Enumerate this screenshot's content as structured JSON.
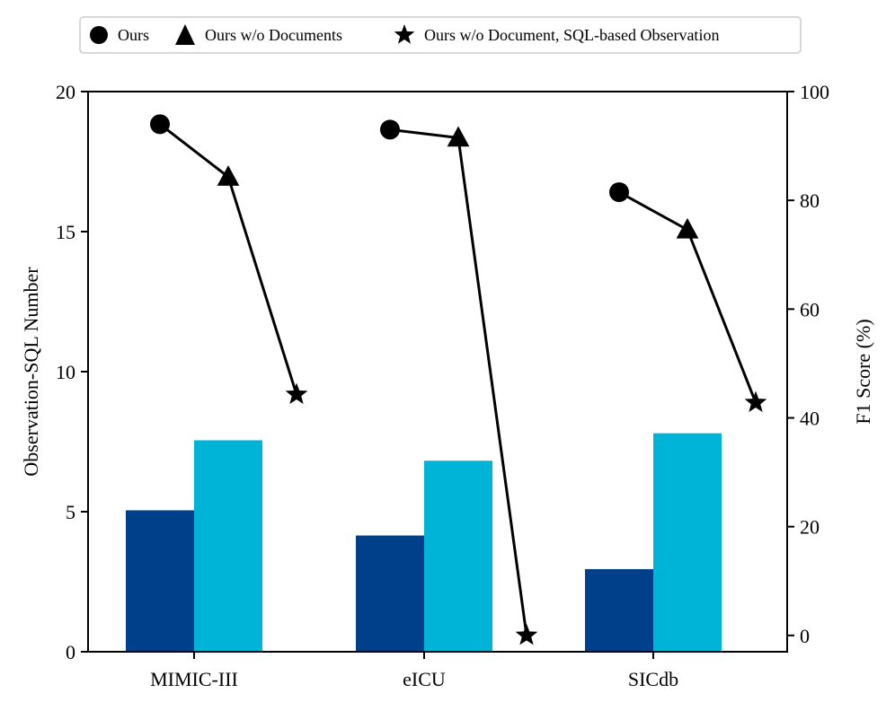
{
  "chart_data": {
    "type": "bar",
    "categories": [
      "MIMIC-III",
      "eICU",
      "SICdb"
    ],
    "left_axis": {
      "label": "Observation-SQL Number",
      "ylim": [
        0,
        20
      ],
      "ticks": [
        0,
        5,
        10,
        15,
        20
      ]
    },
    "right_axis": {
      "label": "F1 Score (%)",
      "ylim": [
        -3,
        100
      ],
      "ticks": [
        0,
        20,
        40,
        60,
        80,
        100
      ]
    },
    "bar_series": [
      {
        "color": "#003f8a",
        "values": [
          5.05,
          4.15,
          2.95
        ]
      },
      {
        "color": "#00b4d8",
        "values": [
          7.55,
          6.82,
          7.8
        ]
      }
    ],
    "line_series": [
      {
        "name": "Ours",
        "marker": "circle",
        "values": [
          94.0,
          93.0,
          81.5
        ]
      },
      {
        "name": "Ours w/o Documents",
        "marker": "triangle",
        "values": [
          84.3,
          91.5,
          74.6
        ]
      },
      {
        "name": "Ours w/o Document, SQL-based Observation",
        "marker": "star",
        "values": [
          44.3,
          0.0,
          42.8
        ]
      }
    ],
    "legend_position": "top-center",
    "grid": false
  }
}
